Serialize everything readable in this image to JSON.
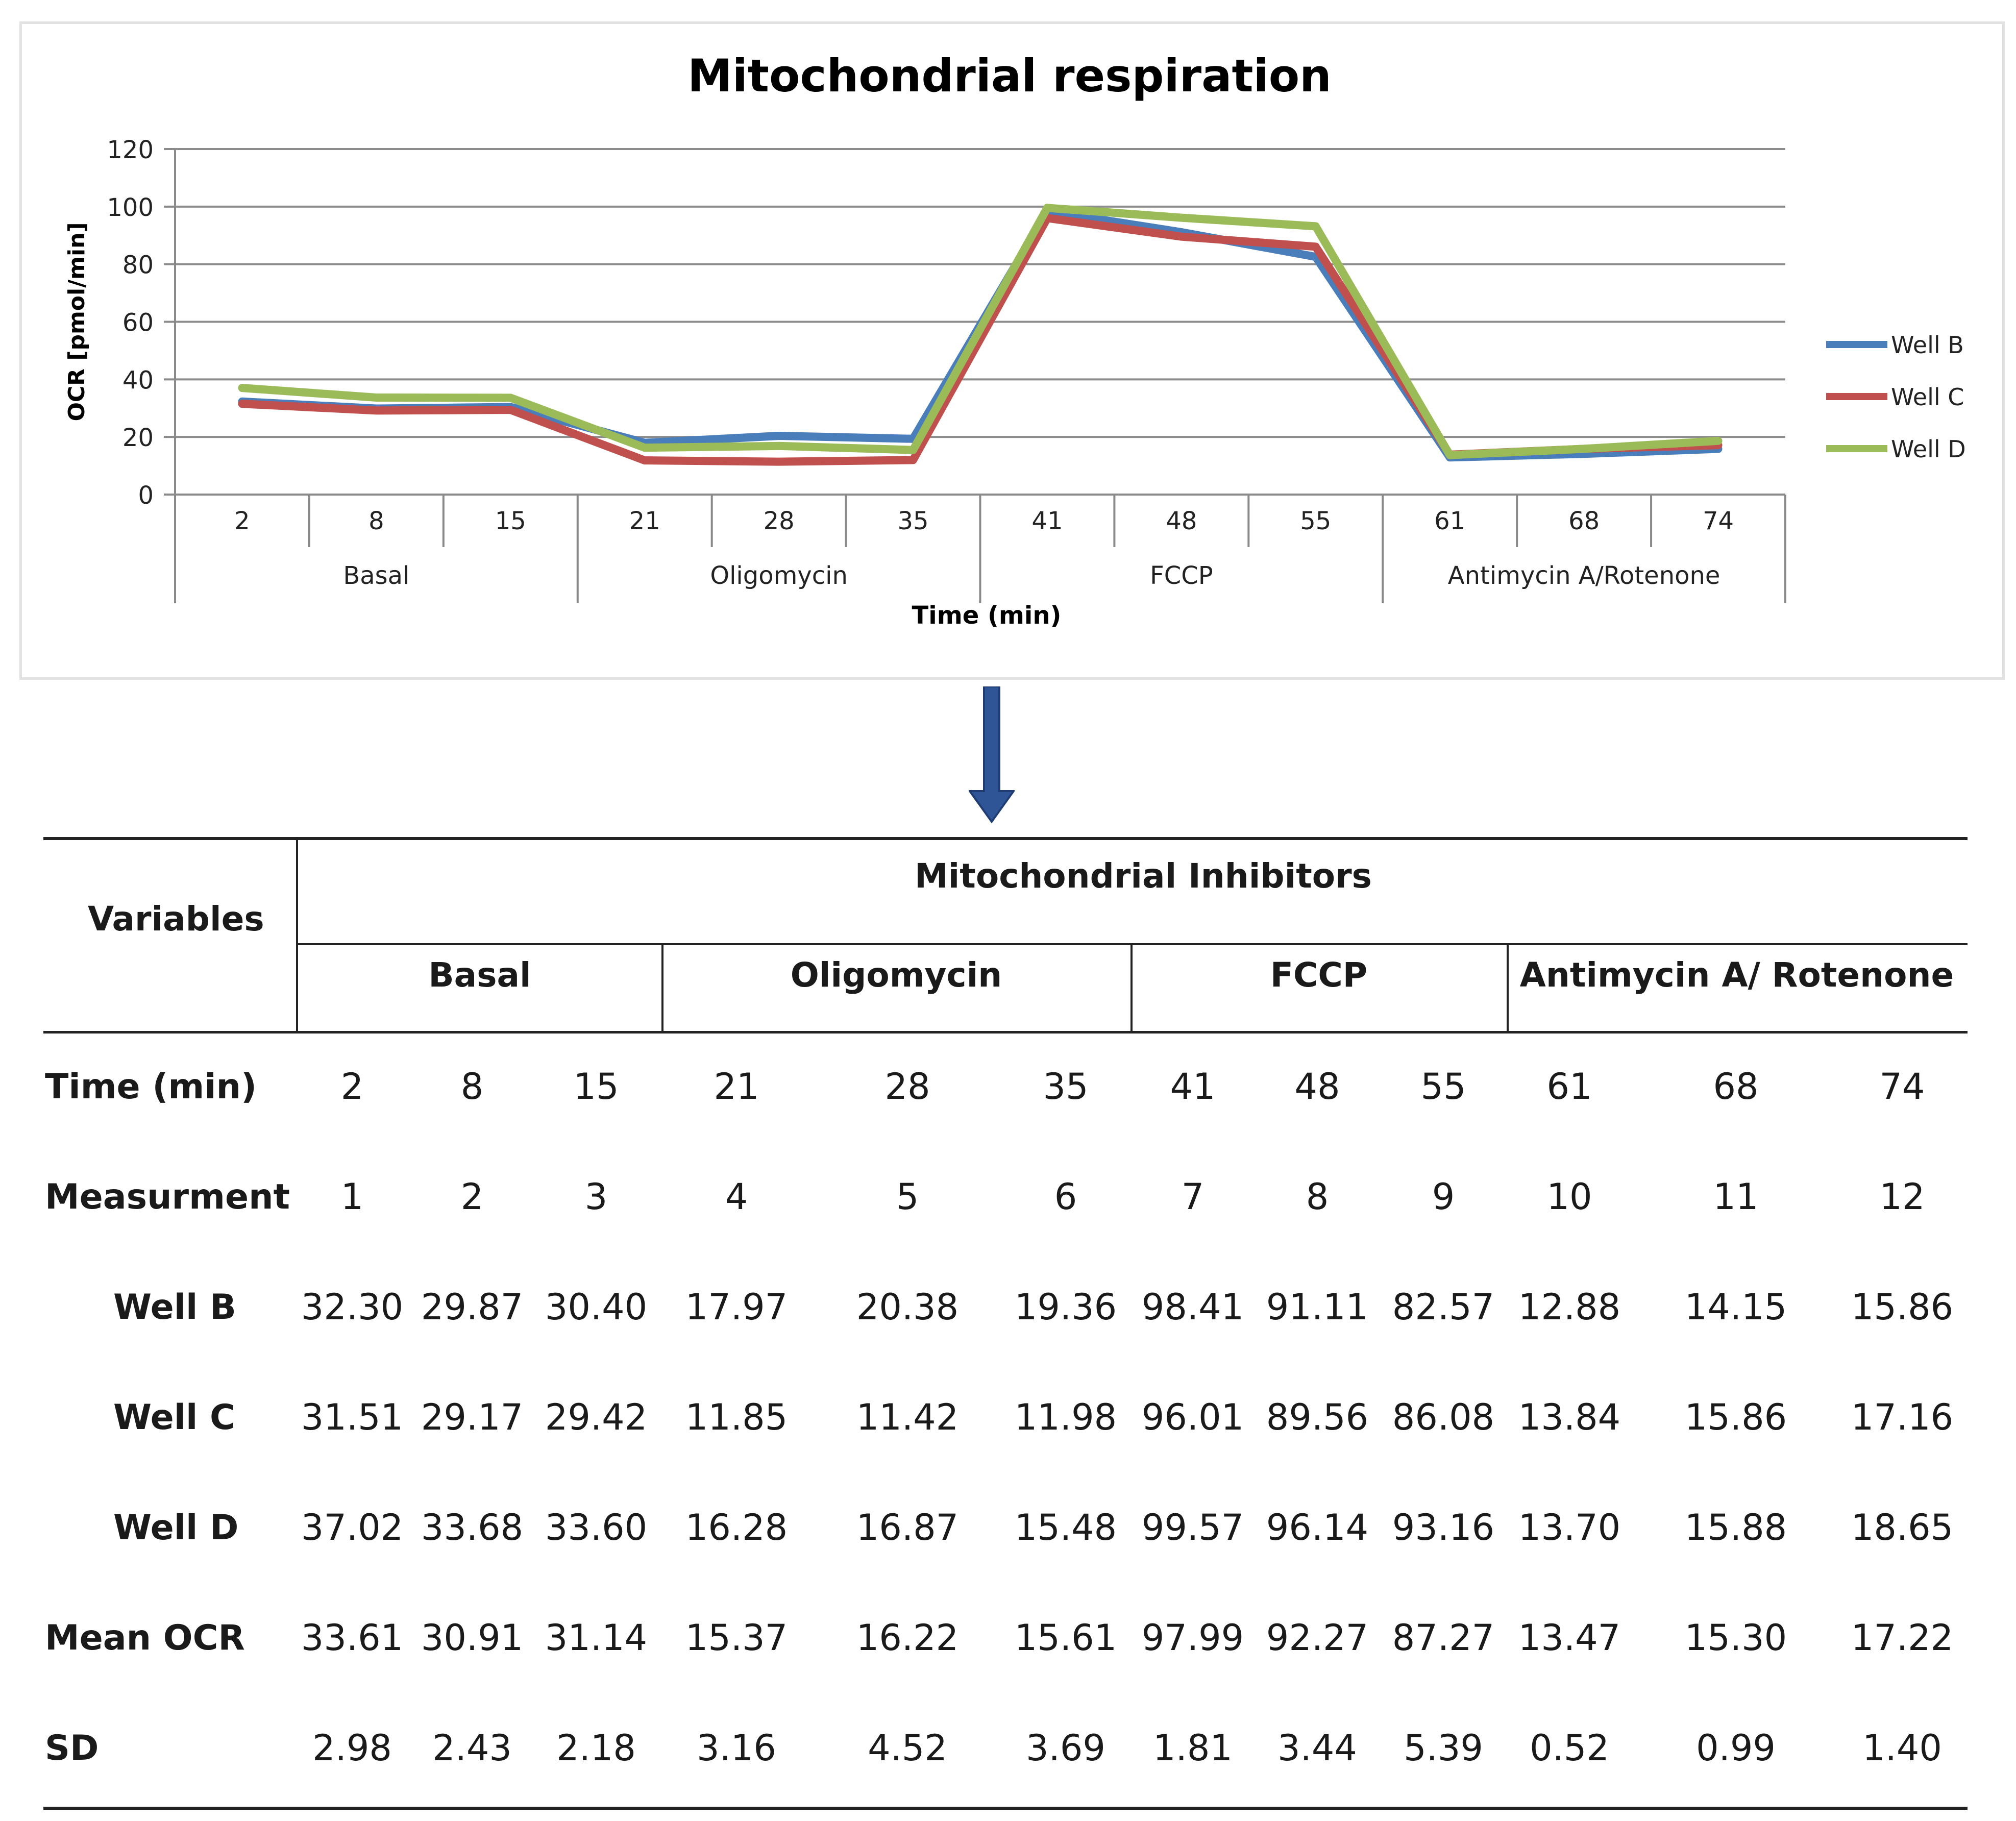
{
  "chart_data": {
    "type": "line",
    "title": "Mitochondrial respiration",
    "xlabel": "Time (min)",
    "ylabel": "OCR [pmol/min]",
    "ylim": [
      0,
      120
    ],
    "yticks": [
      0,
      20,
      40,
      60,
      80,
      100,
      120
    ],
    "categories": [
      "2",
      "8",
      "15",
      "21",
      "28",
      "35",
      "41",
      "48",
      "55",
      "61",
      "68",
      "74"
    ],
    "groups": [
      {
        "label": "Basal",
        "count": 3
      },
      {
        "label": "Oligomycin",
        "count": 3
      },
      {
        "label": "FCCP",
        "count": 3
      },
      {
        "label": "Antimycin A/Rotenone",
        "count": 3
      }
    ],
    "grid": true,
    "legend_position": "right",
    "series": [
      {
        "name": "Well B",
        "color": "#4a7ebb",
        "values": [
          32.3,
          29.87,
          30.4,
          17.97,
          20.38,
          19.36,
          98.41,
          91.11,
          82.57,
          12.88,
          14.15,
          15.86
        ]
      },
      {
        "name": "Well C",
        "color": "#c0504d",
        "values": [
          31.51,
          29.17,
          29.42,
          11.85,
          11.42,
          11.98,
          96.01,
          89.56,
          86.08,
          13.84,
          15.86,
          17.16
        ]
      },
      {
        "name": "Well D",
        "color": "#9bbb59",
        "values": [
          37.02,
          33.68,
          33.6,
          16.28,
          16.87,
          15.48,
          99.57,
          96.14,
          93.16,
          13.7,
          15.88,
          18.65
        ]
      }
    ]
  },
  "arrow_color": "#2f5597",
  "table": {
    "variables_header": "Variables",
    "inhibitors_header": "Mitochondrial Inhibitors",
    "groups": [
      "Basal",
      "Oligomycin",
      "FCCP",
      "Antimycin A/ Rotenone"
    ],
    "rows": [
      {
        "label": "Time (min)",
        "cells": [
          "2",
          "8",
          "15",
          "21",
          "28",
          "35",
          "41",
          "48",
          "55",
          "61",
          "68",
          "74"
        ]
      },
      {
        "label": "Measurment",
        "cells": [
          "1",
          "2",
          "3",
          "4",
          "5",
          "6",
          "7",
          "8",
          "9",
          "10",
          "11",
          "12"
        ]
      },
      {
        "label": "Well B",
        "cells": [
          "32.30",
          "29.87",
          "30.40",
          "17.97",
          "20.38",
          "19.36",
          "98.41",
          "91.11",
          "82.57",
          "12.88",
          "14.15",
          "15.86"
        ]
      },
      {
        "label": "Well C",
        "cells": [
          "31.51",
          "29.17",
          "29.42",
          "11.85",
          "11.42",
          "11.98",
          "96.01",
          "89.56",
          "86.08",
          "13.84",
          "15.86",
          "17.16"
        ]
      },
      {
        "label": "Well D",
        "cells": [
          "37.02",
          "33.68",
          "33.60",
          "16.28",
          "16.87",
          "15.48",
          "99.57",
          "96.14",
          "93.16",
          "13.70",
          "15.88",
          "18.65"
        ]
      },
      {
        "label": "Mean OCR",
        "cells": [
          "33.61",
          "30.91",
          "31.14",
          "15.37",
          "16.22",
          "15.61",
          "97.99",
          "92.27",
          "87.27",
          "13.47",
          "15.30",
          "17.22"
        ]
      },
      {
        "label": "SD",
        "cells": [
          "2.98",
          "2.43",
          "2.18",
          "3.16",
          "4.52",
          "3.69",
          "1.81",
          "3.44",
          "5.39",
          "0.52",
          "0.99",
          "1.40"
        ]
      }
    ]
  }
}
